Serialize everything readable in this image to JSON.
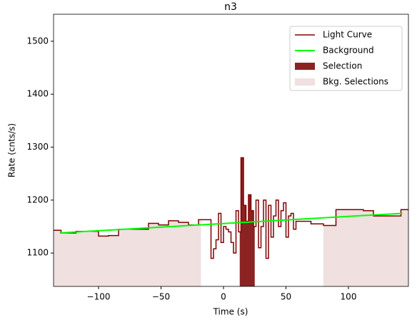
{
  "chart_data": {
    "type": "step",
    "title": "n3",
    "xlabel": "Time (s)",
    "ylabel": "Rate (cnts/s)",
    "xlim": [
      -136,
      148
    ],
    "ylim": [
      1037,
      1551
    ],
    "xticks": [
      {
        "value": -100,
        "label": "−100"
      },
      {
        "value": -50,
        "label": "−50"
      },
      0,
      50,
      100
    ],
    "yticks": [
      1100,
      1200,
      1300,
      1400,
      1500
    ],
    "series": [
      {
        "name": "Light Curve",
        "color": "#800000",
        "x": [
          -136,
          -130,
          -118,
          -100,
          -92,
          -84,
          -60,
          -52,
          -44,
          -36,
          -28,
          -20,
          -10,
          -8,
          -6,
          -4,
          -2,
          0,
          2,
          4,
          6,
          8,
          10,
          12,
          14,
          16,
          18,
          20,
          22,
          24,
          26,
          28,
          30,
          32,
          34,
          36,
          38,
          40,
          42,
          44,
          46,
          48,
          50,
          52,
          54,
          56,
          58,
          60,
          70,
          80,
          90,
          112,
          120,
          142,
          148
        ],
        "values": [
          1143,
          1138,
          1141,
          1132,
          1133,
          1145,
          1156,
          1153,
          1161,
          1158,
          1153,
          1163,
          1090,
          1108,
          1125,
          1175,
          1120,
          1150,
          1145,
          1140,
          1120,
          1100,
          1180,
          1140,
          1280,
          1190,
          1160,
          1210,
          1180,
          1150,
          1200,
          1110,
          1150,
          1200,
          1090,
          1190,
          1130,
          1170,
          1200,
          1150,
          1180,
          1195,
          1130,
          1170,
          1175,
          1145,
          1160,
          1160,
          1155,
          1152,
          1182,
          1180,
          1170,
          1182,
          1182
        ]
      },
      {
        "name": "Background",
        "color": "#00ff00",
        "x": [
          -131,
          143
        ],
        "values": [
          1138,
          1175
        ]
      }
    ],
    "selection": {
      "name": "Selection",
      "color": "#8b2323",
      "ranges": [
        [
          13,
          25
        ]
      ]
    },
    "bkg_selection": {
      "name": "Bkg. Selections",
      "color": "#f0e0e0",
      "ranges": [
        [
          -136,
          -18
        ],
        [
          80,
          148
        ]
      ]
    }
  }
}
